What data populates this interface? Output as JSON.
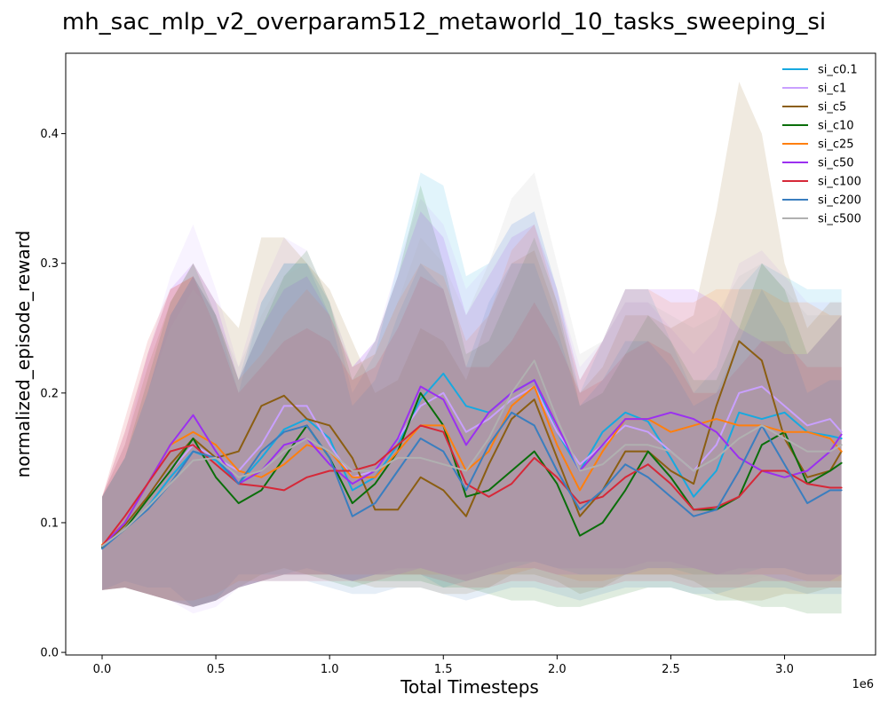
{
  "chart_data": {
    "type": "line",
    "title": "mh_sac_mlp_v2_overparam512_metaworld_10_tasks_sweeping_si",
    "xlabel": "Total Timesteps",
    "ylabel": "normalized_episode_reward",
    "x_scale_label": "1e6",
    "xlim": [
      -0.16,
      3.4
    ],
    "ylim": [
      -0.002,
      0.462
    ],
    "xticks": [
      0.0,
      0.5,
      1.0,
      1.5,
      2.0,
      2.5,
      3.0
    ],
    "xtick_labels": [
      "0.0",
      "0.5",
      "1.0",
      "1.5",
      "2.0",
      "2.5",
      "3.0"
    ],
    "yticks": [
      0.0,
      0.1,
      0.2,
      0.3,
      0.4
    ],
    "ytick_labels": [
      "0.0",
      "0.1",
      "0.2",
      "0.3",
      "0.4"
    ],
    "legend_position": "top-right",
    "grid": false,
    "shaded_bands": true,
    "x": [
      0.0,
      0.1,
      0.2,
      0.3,
      0.4,
      0.5,
      0.6,
      0.7,
      0.8,
      0.9,
      1.0,
      1.1,
      1.2,
      1.3,
      1.4,
      1.5,
      1.6,
      1.7,
      1.8,
      1.9,
      2.0,
      2.1,
      2.2,
      2.3,
      2.4,
      2.5,
      2.6,
      2.7,
      2.8,
      2.9,
      3.0,
      3.1,
      3.2,
      3.25
    ],
    "series": [
      {
        "name": "si_c0.1",
        "color": "#17a9e0",
        "values": [
          0.082,
          0.095,
          0.112,
          0.135,
          0.155,
          0.148,
          0.13,
          0.15,
          0.172,
          0.18,
          0.165,
          0.125,
          0.135,
          0.16,
          0.195,
          0.215,
          0.19,
          0.185,
          0.2,
          0.21,
          0.17,
          0.14,
          0.17,
          0.185,
          0.178,
          0.15,
          0.12,
          0.14,
          0.185,
          0.18,
          0.185,
          0.17,
          0.167,
          0.165
        ],
        "upper": [
          0.12,
          0.15,
          0.2,
          0.26,
          0.29,
          0.26,
          0.2,
          0.27,
          0.3,
          0.3,
          0.27,
          0.2,
          0.23,
          0.3,
          0.37,
          0.36,
          0.29,
          0.3,
          0.33,
          0.34,
          0.28,
          0.2,
          0.24,
          0.28,
          0.28,
          0.24,
          0.2,
          0.22,
          0.28,
          0.3,
          0.29,
          0.28,
          0.28,
          0.28
        ],
        "lower": [
          0.048,
          0.055,
          0.05,
          0.05,
          0.035,
          0.04,
          0.06,
          0.06,
          0.06,
          0.065,
          0.06,
          0.055,
          0.06,
          0.06,
          0.06,
          0.05,
          0.055,
          0.06,
          0.065,
          0.07,
          0.065,
          0.06,
          0.06,
          0.06,
          0.065,
          0.065,
          0.06,
          0.06,
          0.06,
          0.065,
          0.065,
          0.06,
          0.06,
          0.06
        ]
      },
      {
        "name": "si_c1",
        "color": "#c9a0ff",
        "values": [
          0.082,
          0.098,
          0.12,
          0.14,
          0.16,
          0.15,
          0.14,
          0.16,
          0.19,
          0.19,
          0.16,
          0.135,
          0.14,
          0.165,
          0.19,
          0.2,
          0.17,
          0.18,
          0.195,
          0.205,
          0.17,
          0.145,
          0.16,
          0.175,
          0.17,
          0.155,
          0.14,
          0.16,
          0.2,
          0.205,
          0.19,
          0.175,
          0.18,
          0.17
        ],
        "upper": [
          0.12,
          0.16,
          0.23,
          0.29,
          0.33,
          0.28,
          0.22,
          0.28,
          0.32,
          0.31,
          0.27,
          0.22,
          0.24,
          0.3,
          0.35,
          0.33,
          0.28,
          0.3,
          0.33,
          0.34,
          0.28,
          0.22,
          0.24,
          0.27,
          0.27,
          0.25,
          0.23,
          0.25,
          0.3,
          0.31,
          0.29,
          0.27,
          0.27,
          0.27
        ],
        "lower": [
          0.048,
          0.05,
          0.045,
          0.04,
          0.03,
          0.035,
          0.05,
          0.055,
          0.06,
          0.06,
          0.06,
          0.055,
          0.06,
          0.065,
          0.065,
          0.06,
          0.06,
          0.065,
          0.07,
          0.07,
          0.065,
          0.065,
          0.065,
          0.065,
          0.07,
          0.07,
          0.065,
          0.06,
          0.065,
          0.065,
          0.065,
          0.06,
          0.06,
          0.06
        ]
      },
      {
        "name": "si_c5",
        "color": "#8b5e12",
        "values": [
          0.082,
          0.098,
          0.12,
          0.145,
          0.165,
          0.15,
          0.155,
          0.19,
          0.198,
          0.18,
          0.175,
          0.15,
          0.11,
          0.11,
          0.135,
          0.125,
          0.105,
          0.145,
          0.18,
          0.195,
          0.15,
          0.105,
          0.125,
          0.155,
          0.155,
          0.14,
          0.13,
          0.19,
          0.24,
          0.225,
          0.165,
          0.135,
          0.14,
          0.155
        ],
        "upper": [
          0.12,
          0.16,
          0.22,
          0.27,
          0.3,
          0.27,
          0.25,
          0.32,
          0.32,
          0.3,
          0.28,
          0.24,
          0.2,
          0.21,
          0.25,
          0.24,
          0.21,
          0.26,
          0.3,
          0.31,
          0.26,
          0.2,
          0.22,
          0.26,
          0.26,
          0.25,
          0.26,
          0.34,
          0.44,
          0.4,
          0.3,
          0.25,
          0.27,
          0.27
        ],
        "lower": [
          0.048,
          0.05,
          0.045,
          0.04,
          0.035,
          0.04,
          0.05,
          0.06,
          0.065,
          0.06,
          0.06,
          0.055,
          0.05,
          0.05,
          0.05,
          0.045,
          0.045,
          0.05,
          0.06,
          0.06,
          0.055,
          0.045,
          0.05,
          0.06,
          0.06,
          0.06,
          0.055,
          0.045,
          0.04,
          0.04,
          0.045,
          0.045,
          0.05,
          0.05
        ]
      },
      {
        "name": "si_c10",
        "color": "#0a6e0a",
        "values": [
          0.081,
          0.095,
          0.118,
          0.14,
          0.165,
          0.135,
          0.115,
          0.125,
          0.15,
          0.175,
          0.15,
          0.115,
          0.13,
          0.155,
          0.2,
          0.175,
          0.12,
          0.125,
          0.14,
          0.155,
          0.13,
          0.09,
          0.1,
          0.125,
          0.155,
          0.135,
          0.11,
          0.11,
          0.12,
          0.16,
          0.17,
          0.13,
          0.14,
          0.146
        ],
        "upper": [
          0.12,
          0.15,
          0.21,
          0.27,
          0.3,
          0.26,
          0.21,
          0.25,
          0.29,
          0.31,
          0.27,
          0.21,
          0.24,
          0.29,
          0.36,
          0.3,
          0.23,
          0.24,
          0.28,
          0.32,
          0.27,
          0.19,
          0.2,
          0.23,
          0.26,
          0.24,
          0.21,
          0.21,
          0.25,
          0.3,
          0.28,
          0.23,
          0.25,
          0.26
        ],
        "lower": [
          0.048,
          0.05,
          0.045,
          0.04,
          0.035,
          0.04,
          0.05,
          0.055,
          0.06,
          0.06,
          0.055,
          0.05,
          0.055,
          0.055,
          0.055,
          0.05,
          0.05,
          0.045,
          0.04,
          0.04,
          0.035,
          0.035,
          0.04,
          0.045,
          0.05,
          0.05,
          0.045,
          0.04,
          0.04,
          0.035,
          0.035,
          0.03,
          0.03,
          0.03
        ]
      },
      {
        "name": "si_c25",
        "color": "#ff7f0e",
        "values": [
          0.083,
          0.1,
          0.13,
          0.16,
          0.17,
          0.16,
          0.14,
          0.135,
          0.145,
          0.16,
          0.155,
          0.135,
          0.135,
          0.155,
          0.175,
          0.175,
          0.14,
          0.155,
          0.19,
          0.205,
          0.16,
          0.125,
          0.155,
          0.18,
          0.18,
          0.17,
          0.175,
          0.18,
          0.175,
          0.175,
          0.17,
          0.17,
          0.165,
          0.155
        ],
        "upper": [
          0.12,
          0.17,
          0.23,
          0.28,
          0.29,
          0.26,
          0.21,
          0.23,
          0.26,
          0.28,
          0.26,
          0.22,
          0.23,
          0.27,
          0.3,
          0.29,
          0.24,
          0.26,
          0.31,
          0.33,
          0.27,
          0.21,
          0.24,
          0.28,
          0.28,
          0.27,
          0.27,
          0.28,
          0.28,
          0.28,
          0.27,
          0.27,
          0.26,
          0.26
        ],
        "lower": [
          0.048,
          0.05,
          0.045,
          0.04,
          0.04,
          0.045,
          0.055,
          0.055,
          0.06,
          0.06,
          0.06,
          0.06,
          0.06,
          0.06,
          0.06,
          0.06,
          0.055,
          0.06,
          0.06,
          0.065,
          0.06,
          0.055,
          0.055,
          0.06,
          0.06,
          0.06,
          0.06,
          0.06,
          0.06,
          0.06,
          0.06,
          0.055,
          0.055,
          0.055
        ]
      },
      {
        "name": "si_c50",
        "color": "#9b30f0",
        "values": [
          0.082,
          0.1,
          0.13,
          0.16,
          0.183,
          0.155,
          0.13,
          0.14,
          0.16,
          0.165,
          0.145,
          0.13,
          0.14,
          0.165,
          0.205,
          0.195,
          0.16,
          0.185,
          0.2,
          0.21,
          0.175,
          0.14,
          0.16,
          0.18,
          0.18,
          0.185,
          0.18,
          0.17,
          0.15,
          0.14,
          0.135,
          0.14,
          0.155,
          0.168
        ],
        "upper": [
          0.12,
          0.17,
          0.23,
          0.28,
          0.3,
          0.27,
          0.21,
          0.25,
          0.28,
          0.29,
          0.26,
          0.22,
          0.24,
          0.29,
          0.34,
          0.32,
          0.26,
          0.29,
          0.32,
          0.33,
          0.28,
          0.21,
          0.24,
          0.28,
          0.28,
          0.28,
          0.28,
          0.27,
          0.25,
          0.24,
          0.23,
          0.23,
          0.25,
          0.26
        ],
        "lower": [
          0.048,
          0.05,
          0.045,
          0.04,
          0.035,
          0.04,
          0.05,
          0.055,
          0.06,
          0.06,
          0.06,
          0.055,
          0.06,
          0.06,
          0.065,
          0.06,
          0.055,
          0.06,
          0.065,
          0.065,
          0.06,
          0.06,
          0.06,
          0.06,
          0.065,
          0.065,
          0.065,
          0.06,
          0.06,
          0.06,
          0.055,
          0.055,
          0.055,
          0.06
        ]
      },
      {
        "name": "si_c100",
        "color": "#d62838",
        "values": [
          0.082,
          0.105,
          0.13,
          0.155,
          0.16,
          0.145,
          0.13,
          0.128,
          0.125,
          0.135,
          0.14,
          0.14,
          0.145,
          0.16,
          0.175,
          0.17,
          0.13,
          0.12,
          0.13,
          0.15,
          0.135,
          0.115,
          0.12,
          0.135,
          0.145,
          0.13,
          0.11,
          0.112,
          0.12,
          0.14,
          0.14,
          0.13,
          0.127,
          0.127
        ],
        "upper": [
          0.12,
          0.18,
          0.24,
          0.28,
          0.29,
          0.25,
          0.2,
          0.22,
          0.24,
          0.25,
          0.24,
          0.21,
          0.22,
          0.25,
          0.29,
          0.28,
          0.22,
          0.22,
          0.24,
          0.27,
          0.24,
          0.2,
          0.21,
          0.23,
          0.24,
          0.23,
          0.2,
          0.2,
          0.22,
          0.24,
          0.24,
          0.22,
          0.22,
          0.22
        ],
        "lower": [
          0.048,
          0.05,
          0.045,
          0.04,
          0.035,
          0.04,
          0.05,
          0.055,
          0.055,
          0.055,
          0.055,
          0.055,
          0.055,
          0.06,
          0.06,
          0.055,
          0.05,
          0.05,
          0.055,
          0.055,
          0.05,
          0.05,
          0.05,
          0.055,
          0.055,
          0.055,
          0.05,
          0.05,
          0.05,
          0.055,
          0.055,
          0.05,
          0.05,
          0.05
        ]
      },
      {
        "name": "si_c200",
        "color": "#3a7ebf",
        "values": [
          0.08,
          0.095,
          0.11,
          0.13,
          0.155,
          0.15,
          0.13,
          0.155,
          0.17,
          0.175,
          0.15,
          0.105,
          0.115,
          0.14,
          0.165,
          0.155,
          0.125,
          0.16,
          0.185,
          0.175,
          0.14,
          0.11,
          0.125,
          0.145,
          0.135,
          0.12,
          0.105,
          0.11,
          0.14,
          0.175,
          0.145,
          0.115,
          0.125,
          0.125
        ],
        "upper": [
          0.12,
          0.15,
          0.2,
          0.26,
          0.29,
          0.26,
          0.21,
          0.27,
          0.3,
          0.3,
          0.26,
          0.19,
          0.21,
          0.26,
          0.3,
          0.28,
          0.22,
          0.27,
          0.3,
          0.3,
          0.25,
          0.19,
          0.21,
          0.24,
          0.24,
          0.22,
          0.19,
          0.2,
          0.24,
          0.28,
          0.25,
          0.2,
          0.21,
          0.21
        ],
        "lower": [
          0.048,
          0.05,
          0.045,
          0.04,
          0.035,
          0.04,
          0.05,
          0.055,
          0.055,
          0.055,
          0.05,
          0.045,
          0.045,
          0.05,
          0.05,
          0.045,
          0.04,
          0.045,
          0.05,
          0.05,
          0.045,
          0.04,
          0.045,
          0.05,
          0.05,
          0.05,
          0.045,
          0.045,
          0.05,
          0.05,
          0.05,
          0.045,
          0.045,
          0.045
        ]
      },
      {
        "name": "si_c500",
        "color": "#b0b0b0",
        "values": [
          0.082,
          0.095,
          0.112,
          0.13,
          0.148,
          0.15,
          0.135,
          0.14,
          0.155,
          0.165,
          0.155,
          0.14,
          0.14,
          0.15,
          0.15,
          0.145,
          0.14,
          0.165,
          0.2,
          0.225,
          0.18,
          0.14,
          0.145,
          0.16,
          0.16,
          0.155,
          0.14,
          0.15,
          0.165,
          0.175,
          0.165,
          0.155,
          0.155,
          0.16
        ],
        "upper": [
          0.12,
          0.15,
          0.2,
          0.25,
          0.28,
          0.26,
          0.22,
          0.26,
          0.29,
          0.3,
          0.27,
          0.22,
          0.23,
          0.27,
          0.32,
          0.3,
          0.26,
          0.3,
          0.35,
          0.37,
          0.3,
          0.23,
          0.24,
          0.27,
          0.27,
          0.26,
          0.25,
          0.26,
          0.29,
          0.3,
          0.28,
          0.26,
          0.26,
          0.26
        ],
        "lower": [
          0.048,
          0.05,
          0.045,
          0.04,
          0.035,
          0.04,
          0.05,
          0.055,
          0.06,
          0.06,
          0.06,
          0.055,
          0.06,
          0.06,
          0.06,
          0.055,
          0.055,
          0.06,
          0.06,
          0.065,
          0.06,
          0.055,
          0.055,
          0.06,
          0.06,
          0.06,
          0.055,
          0.055,
          0.055,
          0.06,
          0.06,
          0.055,
          0.055,
          0.055
        ]
      }
    ]
  }
}
